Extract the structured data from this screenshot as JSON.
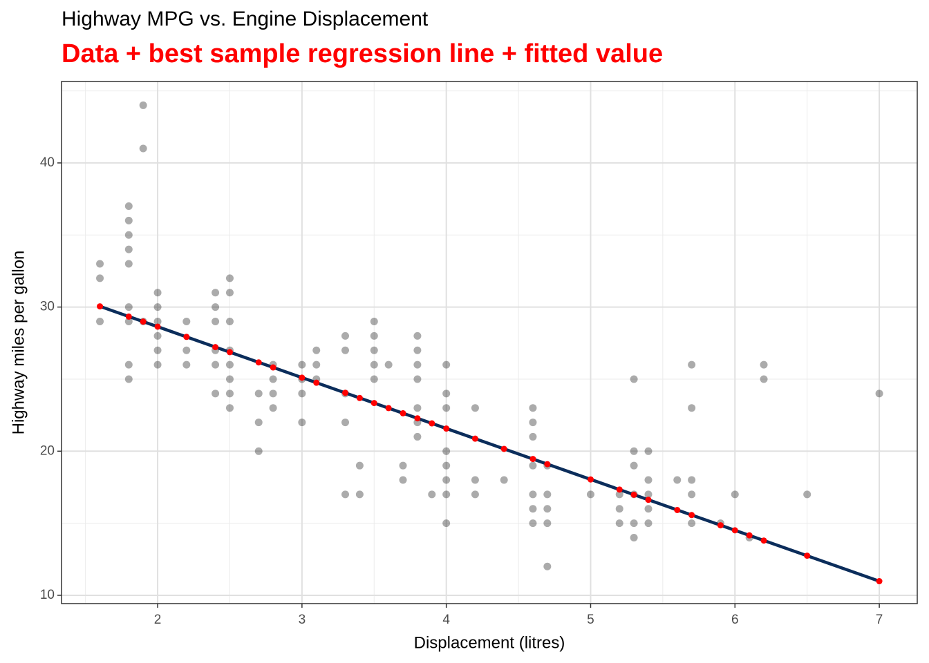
{
  "chart_data": {
    "type": "scatter",
    "title": "Highway MPG vs. Engine Displacement",
    "subtitle": "Data + best sample regression line + fitted value",
    "x_label": "Displacement (litres)",
    "y_label": "Highway miles per gallon",
    "xlim": [
      1.334,
      7.263
    ],
    "ylim": [
      9.425,
      45.65
    ],
    "xticks": [
      2,
      3,
      4,
      5,
      6,
      7
    ],
    "yticks": [
      10,
      20,
      30,
      40
    ],
    "x_minor_grid": [
      1.5,
      2.5,
      3.5,
      4.5,
      5.5,
      6.5
    ],
    "y_minor_grid": [
      15,
      25,
      35,
      45
    ],
    "grid": true,
    "points": {
      "color": "#000000",
      "x": [
        1.6,
        1.6,
        1.6,
        1.8,
        1.8,
        1.8,
        1.8,
        1.8,
        1.8,
        1.8,
        1.8,
        1.8,
        1.9,
        1.9,
        1.9,
        2.0,
        2.0,
        2.0,
        2.0,
        2.0,
        2.0,
        2.2,
        2.2,
        2.2,
        2.4,
        2.4,
        2.4,
        2.4,
        2.4,
        2.4,
        2.5,
        2.5,
        2.5,
        2.5,
        2.5,
        2.5,
        2.5,
        2.5,
        2.7,
        2.7,
        2.7,
        2.8,
        2.8,
        2.8,
        2.8,
        3.0,
        3.0,
        3.0,
        3.0,
        3.1,
        3.1,
        3.1,
        3.3,
        3.3,
        3.3,
        3.3,
        3.3,
        3.4,
        3.4,
        3.5,
        3.5,
        3.5,
        3.5,
        3.5,
        3.6,
        3.7,
        3.7,
        3.8,
        3.8,
        3.8,
        3.8,
        3.8,
        3.8,
        3.8,
        3.9,
        4.0,
        4.0,
        4.0,
        4.0,
        4.0,
        4.0,
        4.0,
        4.0,
        4.2,
        4.2,
        4.2,
        4.4,
        4.6,
        4.6,
        4.6,
        4.6,
        4.6,
        4.6,
        4.6,
        4.7,
        4.7,
        4.7,
        4.7,
        4.7,
        5.0,
        5.2,
        5.2,
        5.2,
        5.3,
        5.3,
        5.3,
        5.3,
        5.3,
        5.3,
        5.4,
        5.4,
        5.4,
        5.4,
        5.4,
        5.6,
        5.7,
        5.7,
        5.7,
        5.7,
        5.7,
        5.9,
        6.0,
        6.1,
        6.2,
        6.2,
        6.5,
        7.0
      ],
      "values": [
        33,
        32,
        29,
        37,
        36,
        35,
        34,
        33,
        30,
        29,
        26,
        25,
        44,
        41,
        29,
        31,
        30,
        29,
        28,
        27,
        26,
        29,
        27,
        26,
        31,
        30,
        29,
        27,
        26,
        24,
        32,
        31,
        29,
        27,
        26,
        25,
        24,
        23,
        24,
        22,
        20,
        26,
        25,
        24,
        23,
        26,
        25,
        24,
        22,
        27,
        26,
        25,
        28,
        27,
        24,
        22,
        17,
        19,
        17,
        29,
        28,
        27,
        26,
        25,
        26,
        19,
        18,
        28,
        27,
        26,
        25,
        23,
        22,
        21,
        17,
        26,
        24,
        23,
        20,
        19,
        18,
        17,
        15,
        23,
        18,
        17,
        18,
        23,
        22,
        21,
        19,
        17,
        16,
        15,
        19,
        17,
        16,
        15,
        12,
        17,
        17,
        16,
        15,
        25,
        20,
        19,
        17,
        15,
        14,
        20,
        18,
        17,
        16,
        15,
        18,
        26,
        23,
        18,
        17,
        15,
        15,
        17,
        14,
        26,
        25,
        17,
        24
      ]
    },
    "line": {
      "color": "#0b2d5b",
      "x": [
        1.6,
        7.0
      ],
      "values": [
        30.05,
        10.98
      ]
    },
    "fitted": {
      "color": "#ff0000",
      "x": [
        1.6,
        1.8,
        1.9,
        2.0,
        2.2,
        2.4,
        2.5,
        2.7,
        2.8,
        3.0,
        3.1,
        3.3,
        3.4,
        3.5,
        3.6,
        3.7,
        3.8,
        3.9,
        4.0,
        4.2,
        4.4,
        4.6,
        4.7,
        5.0,
        5.2,
        5.3,
        5.4,
        5.6,
        5.7,
        5.9,
        6.0,
        6.1,
        6.2,
        6.5,
        7.0
      ],
      "values": [
        30.05,
        29.34,
        28.99,
        28.64,
        27.93,
        27.22,
        26.87,
        26.16,
        25.81,
        25.1,
        24.75,
        24.05,
        23.69,
        23.34,
        22.99,
        22.63,
        22.28,
        21.93,
        21.57,
        20.87,
        20.16,
        19.46,
        19.1,
        18.04,
        17.34,
        16.98,
        16.63,
        15.92,
        15.57,
        14.86,
        14.51,
        14.16,
        13.8,
        12.75,
        10.98
      ]
    }
  }
}
